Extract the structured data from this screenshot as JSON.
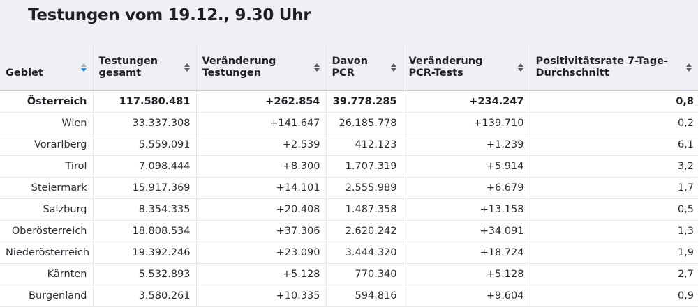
{
  "title": "Testungen vom 19.12., 9.30 Uhr",
  "columns": [
    {
      "label": "Gebiet",
      "sort": "desc"
    },
    {
      "label": "Testungen gesamt",
      "sort": "none"
    },
    {
      "label": "Veränderung Testungen",
      "sort": "none"
    },
    {
      "label": "Davon PCR",
      "sort": "none"
    },
    {
      "label": "Veränderung PCR-Tests",
      "sort": "none"
    },
    {
      "label": "Positivitätsrate 7-Tage-Durchschnitt",
      "sort": "none"
    }
  ],
  "colors": {
    "header_bg": "#eef0f3",
    "sort_active": "#2b8fe0",
    "sort_inactive": "#5a5e66"
  },
  "rows": [
    [
      "Österreich",
      "117.580.481",
      "+262.854",
      "39.778.285",
      "+234.247",
      "0,8"
    ],
    [
      "Wien",
      "33.337.308",
      "+141.647",
      "26.185.778",
      "+139.710",
      "0,2"
    ],
    [
      "Vorarlberg",
      "5.559.091",
      "+2.539",
      "412.123",
      "+1.239",
      "6,1"
    ],
    [
      "Tirol",
      "7.098.444",
      "+8.300",
      "1.707.319",
      "+5.914",
      "3,2"
    ],
    [
      "Steiermark",
      "15.917.369",
      "+14.101",
      "2.555.989",
      "+6.679",
      "1,7"
    ],
    [
      "Salzburg",
      "8.354.335",
      "+20.408",
      "1.487.358",
      "+13.158",
      "0,5"
    ],
    [
      "Oberösterreich",
      "18.808.534",
      "+37.306",
      "2.620.242",
      "+34.091",
      "1,3"
    ],
    [
      "Niederösterreich",
      "19.392.246",
      "+23.090",
      "3.444.320",
      "+18.724",
      "1,9"
    ],
    [
      "Kärnten",
      "5.532.893",
      "+5.128",
      "770.340",
      "+5.128",
      "2,7"
    ],
    [
      "Burgenland",
      "3.580.261",
      "+10.335",
      "594.816",
      "+9.604",
      "0,9"
    ]
  ]
}
